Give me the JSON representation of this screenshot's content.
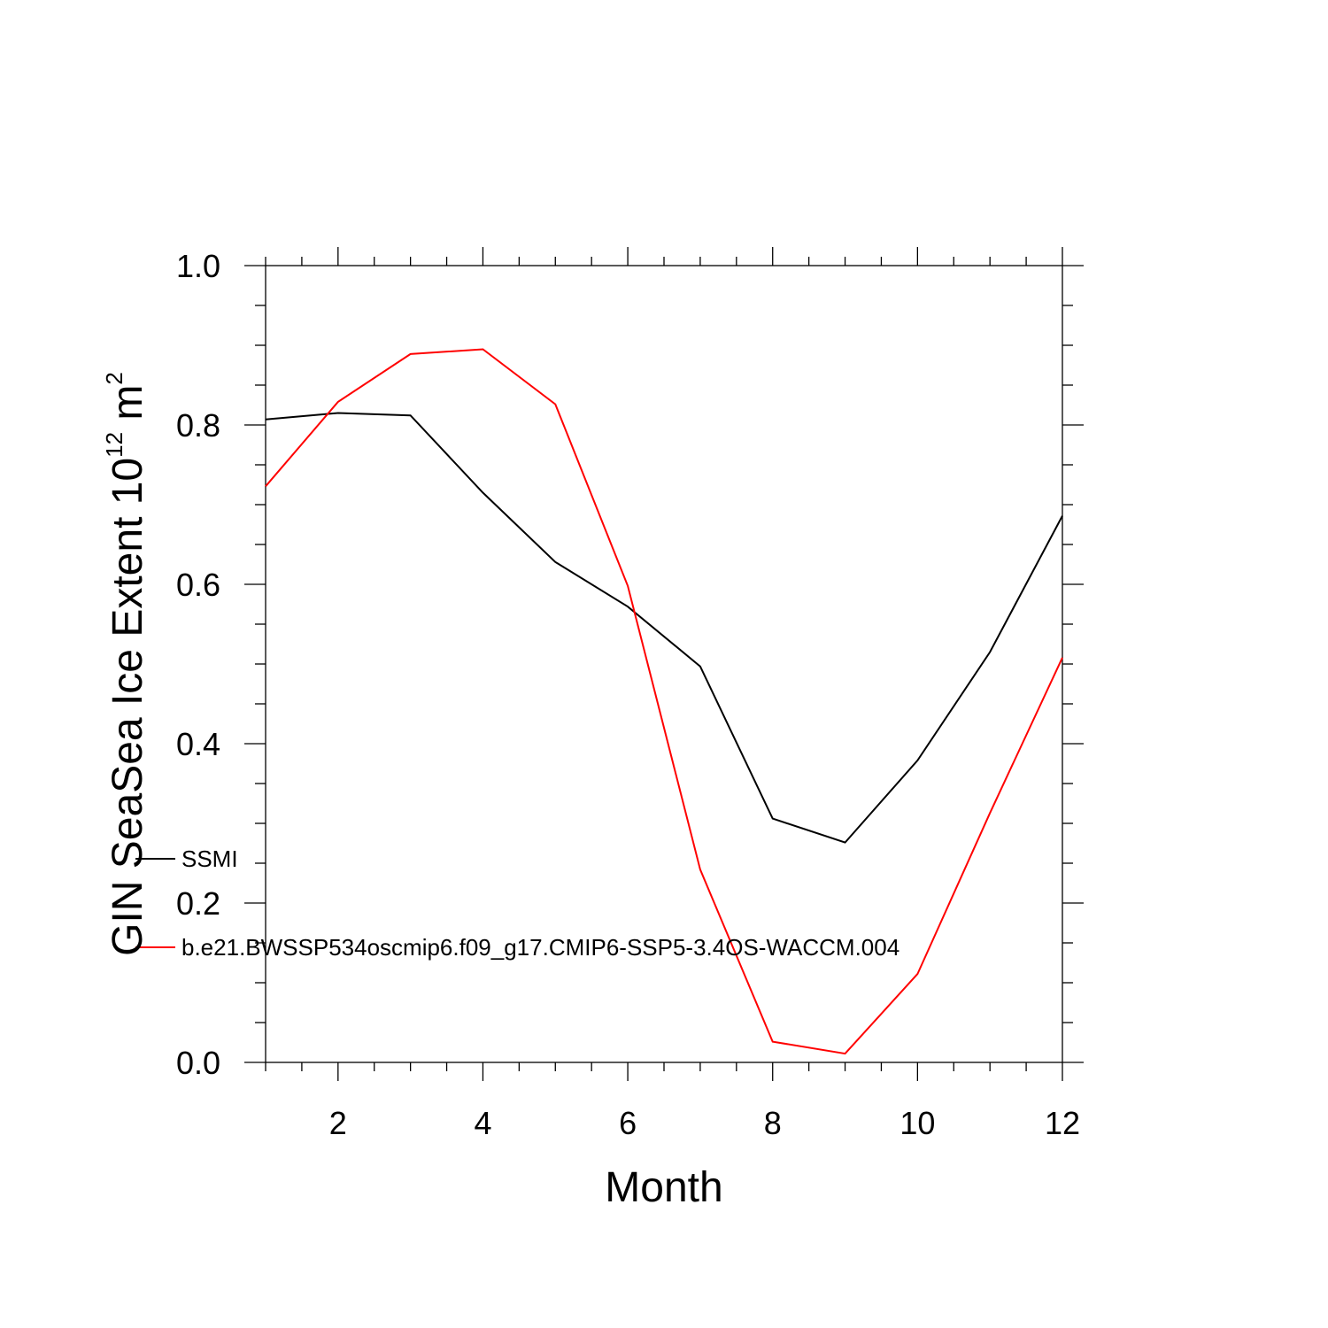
{
  "chart_data": {
    "type": "line",
    "xlabel": "Month",
    "ylabel_parts": {
      "text": "GIN SeaSea Ice Extent 10",
      "exponent1": "12",
      "unit": " m",
      "exponent2": "2"
    },
    "xlim": [
      1,
      12
    ],
    "ylim": [
      0,
      1
    ],
    "x_ticks": [
      2,
      4,
      6,
      8,
      10,
      12
    ],
    "y_ticks": [
      "0.0",
      "0.2",
      "0.4",
      "0.6",
      "0.8",
      "1.0"
    ],
    "grid": false,
    "legend_position": "lower-left",
    "x": [
      1,
      2,
      3,
      4,
      5,
      6,
      7,
      8,
      9,
      10,
      11,
      12
    ],
    "series": [
      {
        "name": "SSMI",
        "color": "#000000",
        "values": [
          0.807,
          0.815,
          0.812,
          0.715,
          0.628,
          0.572,
          0.497,
          0.306,
          0.276,
          0.379,
          0.515,
          0.686
        ]
      },
      {
        "name": "b.e21.BWSSP534oscmip6.f09_g17.CMIP6-SSP5-3.4OS-WACCM.004",
        "color": "#ff0000",
        "values": [
          0.723,
          0.829,
          0.889,
          0.895,
          0.826,
          0.598,
          0.242,
          0.026,
          0.011,
          0.111,
          0.313,
          0.508
        ]
      }
    ]
  }
}
